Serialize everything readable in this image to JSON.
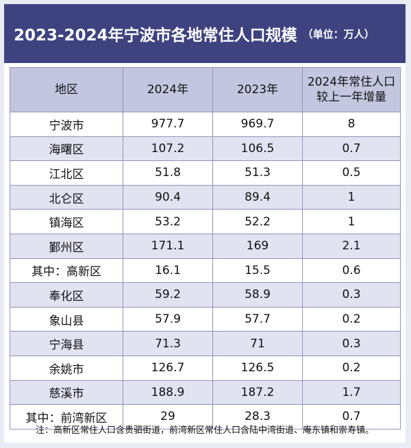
{
  "title": {
    "main": "2023-2024年宁波市各地常住人口规模",
    "unit": "（单位：万人）"
  },
  "table": {
    "headers": [
      "地区",
      "2024年",
      "2023年",
      "2024年常住人口",
      "较上一年增量"
    ],
    "rows": [
      [
        "宁波市",
        "977.7",
        "969.7",
        "8"
      ],
      [
        "海曙区",
        "107.2",
        "106.5",
        "0.7"
      ],
      [
        "江北区",
        "51.8",
        "51.3",
        "0.5"
      ],
      [
        "北仑区",
        "90.4",
        "89.4",
        "1"
      ],
      [
        "镇海区",
        "53.2",
        "52.2",
        "1"
      ],
      [
        "鄞州区",
        "171.1",
        "169",
        "2.1"
      ],
      [
        "其中：高新区",
        "16.1",
        "15.5",
        "0.6"
      ],
      [
        "奉化区",
        "59.2",
        "58.9",
        "0.3"
      ],
      [
        "象山县",
        "57.9",
        "57.7",
        "0.2"
      ],
      [
        "宁海县",
        "71.3",
        "71",
        "0.3"
      ],
      [
        "余姚市",
        "126.7",
        "126.5",
        "0.2"
      ],
      [
        "慈溪市",
        "188.9",
        "187.2",
        "1.7"
      ],
      [
        "其中：前湾新区",
        "29",
        "28.3",
        "0.7"
      ]
    ]
  },
  "note": "注：高新区常住人口含贵驷街道，前湾新区常住人口含陆中湾街道、庵东镇和崇寿镇。",
  "colors": {
    "title_bg": "#3e4380",
    "header_bg": "#c4c6e0",
    "stripe_bg": "#e1e3f1"
  }
}
